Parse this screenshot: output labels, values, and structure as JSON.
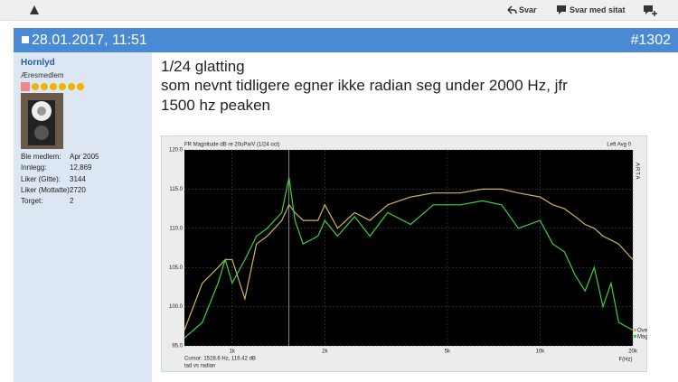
{
  "toolbar": {
    "actions": [
      "Svar",
      "Svar med sitat"
    ]
  },
  "post": {
    "date": "28.01.2017, 11:51",
    "number": "#1302",
    "user": {
      "name": "Hornlyd",
      "title": "Æresmedlem",
      "stats": [
        [
          "Ble medlem:",
          "Apr 2005"
        ],
        [
          "Innlegg:",
          "12,869"
        ],
        [
          "Liker (Gitte):",
          "3144"
        ],
        [
          "Liker (Mottatte):",
          "2720"
        ],
        [
          "Torget:",
          "2"
        ]
      ]
    },
    "body": [
      "1/24 glatting",
      "som nevnt tidligere egner ikke radian seg under 2000 Hz, jfr",
      "1500 hz peaken"
    ]
  },
  "chart_data": {
    "type": "line",
    "title": "FR Magnitude dB re 20uPa/V (1/24 oct)",
    "channel": "Left  Avg 0",
    "brand": "ARTA",
    "cursor_label": "Cursor:  1528.6 Hz, 116.42 dB",
    "cursor_x": 1528.6,
    "note": "tad vs radian",
    "x_label": "F(Hz)",
    "xscale": "log",
    "grid": true,
    "xlim": [
      700,
      20000
    ],
    "xticks": [
      {
        "value": 1000,
        "label": "1k"
      },
      {
        "value": 2000,
        "label": "2k"
      },
      {
        "value": 5000,
        "label": "5k"
      },
      {
        "value": 10000,
        "label": "10k"
      },
      {
        "value": 20000,
        "label": "20k"
      }
    ],
    "ylim": [
      95,
      120
    ],
    "yticks": [
      {
        "value": 95,
        "label": "95.0"
      },
      {
        "value": 100,
        "label": "100.0"
      },
      {
        "value": 105,
        "label": "105.0"
      },
      {
        "value": 110,
        "label": "110.0"
      },
      {
        "value": 115,
        "label": "115.0"
      },
      {
        "value": 120,
        "label": "120.0"
      }
    ],
    "x": [
      700,
      800,
      900,
      950,
      1000,
      1100,
      1200,
      1300,
      1450,
      1530,
      1600,
      1700,
      1900,
      2000,
      2200,
      2500,
      2800,
      3200,
      3800,
      4500,
      5500,
      6500,
      7500,
      8500,
      10000,
      11000,
      12000,
      13000,
      14000,
      15000,
      16000,
      17000,
      18000,
      20000
    ],
    "series": [
      {
        "name": "Over",
        "color": "#c9b65f",
        "values": [
          97,
          103,
          105,
          106,
          106,
          101,
          108,
          109,
          111,
          113,
          112,
          111,
          111,
          113,
          110,
          112,
          111,
          113,
          114,
          114.5,
          114.5,
          115,
          115,
          114.5,
          114,
          113,
          112.5,
          111.5,
          110.5,
          110,
          109,
          108.5,
          108,
          106
        ]
      },
      {
        "name": "Magn",
        "color": "#3fcf3f",
        "values": [
          96,
          98,
          103,
          106,
          103,
          106,
          109,
          110,
          112,
          116.5,
          111,
          108,
          109,
          111,
          109,
          111.5,
          109,
          112,
          110.5,
          113,
          113,
          113.5,
          113,
          110,
          111,
          108,
          107,
          104,
          102,
          105,
          100,
          103,
          98,
          97
        ]
      }
    ]
  }
}
